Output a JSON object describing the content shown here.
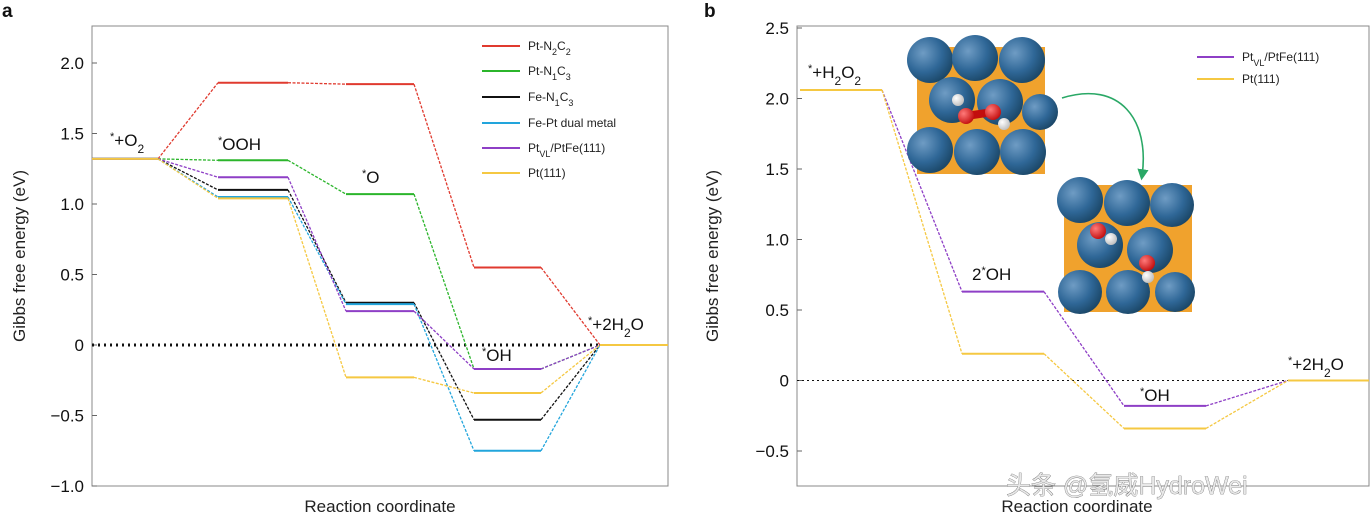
{
  "watermark": "头条 @氢威HydroWei",
  "chart_data": [
    {
      "type": "line",
      "panel_label": "a",
      "title": "",
      "xlabel": "Reaction coordinate",
      "ylabel": "Gibbs free energy (eV)",
      "ylim": [
        -1.0,
        2.25
      ],
      "yticks": [
        "2.0",
        "1.5",
        "1.0",
        "0.5",
        "0",
        "−0.5",
        "−1.0"
      ],
      "ytick_values": [
        2.0,
        1.5,
        1.0,
        0.5,
        0,
        -0.5,
        -1.0
      ],
      "steps": [
        "*+O2",
        "*OOH",
        "*O",
        "*OH",
        "*+2H2O"
      ],
      "reference_line_y": 0,
      "legend": {
        "position": "top-right"
      },
      "series": [
        {
          "name": "Pt-N2C2",
          "legend_main": "Pt-N",
          "legend_sub1": "2",
          "legend_mid": "C",
          "legend_sub2": "2",
          "color": "#e03a2f",
          "values": [
            1.32,
            1.86,
            1.85,
            0.55,
            0.0
          ]
        },
        {
          "name": "Pt-N1C3",
          "legend_main": "Pt-N",
          "legend_sub1": "1",
          "legend_mid": "C",
          "legend_sub2": "3",
          "color": "#2bb52b",
          "values": [
            1.32,
            1.31,
            1.07,
            -0.17,
            0.0
          ]
        },
        {
          "name": "Fe-N1C3",
          "legend_main": "Fe-N",
          "legend_sub1": "1",
          "legend_mid": "C",
          "legend_sub2": "3",
          "color": "#111111",
          "values": [
            1.32,
            1.1,
            0.3,
            -0.53,
            0.0
          ]
        },
        {
          "name": "Fe-Pt dual metal",
          "legend_main": "Fe-Pt dual metal",
          "color": "#22a5dc",
          "values": [
            1.32,
            1.05,
            0.29,
            -0.75,
            0.0
          ]
        },
        {
          "name": "PtVL/PtFe(111)",
          "legend_main": "Pt",
          "legend_sub1": "VL",
          "legend_mid": "/PtFe(111)",
          "color": "#8e3fc6",
          "values": [
            1.32,
            1.19,
            0.24,
            -0.17,
            0.0
          ]
        },
        {
          "name": "Pt(111)",
          "legend_main": "Pt(111)",
          "color": "#f5c842",
          "values": [
            1.32,
            1.04,
            -0.23,
            -0.34,
            0.0
          ]
        }
      ],
      "annotations": {
        "step1": {
          "sup": "*",
          "pre": "+O",
          "sub": "2",
          "post": ""
        },
        "step2": {
          "sup": "*",
          "pre": "OOH"
        },
        "step3": {
          "sup": "*",
          "pre": "O"
        },
        "step4": {
          "sup": "*",
          "pre": "OH"
        },
        "step5": {
          "sup": "*",
          "pre": "+2H",
          "sub": "2",
          "post": "O"
        }
      }
    },
    {
      "type": "line",
      "panel_label": "b",
      "title": "",
      "xlabel": "Reaction coordinate",
      "ylabel": "Gibbs free energy (eV)",
      "ylim": [
        -0.6,
        2.5
      ],
      "yticks": [
        "2.5",
        "2.0",
        "1.5",
        "1.0",
        "0.5",
        "0",
        "−0.5"
      ],
      "ytick_values": [
        2.5,
        2.0,
        1.5,
        1.0,
        0.5,
        0,
        -0.5
      ],
      "steps": [
        "*+H2O2",
        "2*OH",
        "*OH",
        "*+2H2O"
      ],
      "reference_line_y": 0,
      "legend": {
        "position": "top-right"
      },
      "series": [
        {
          "name": "PtVL/PtFe(111)",
          "legend_main": "Pt",
          "legend_sub1": "VL",
          "legend_mid": "/PtFe(111)",
          "color": "#8e3fc6",
          "values": [
            2.06,
            0.63,
            -0.18,
            0.0
          ]
        },
        {
          "name": "Pt(111)",
          "legend_main": "Pt(111)",
          "color": "#f5c842",
          "values": [
            2.06,
            0.19,
            -0.34,
            0.0
          ]
        }
      ],
      "annotations": {
        "step1": {
          "sup": "*",
          "pre": "+H",
          "sub": "2",
          "post": "O",
          "sub2": "2"
        },
        "step2": {
          "pre": "2",
          "sup": "*",
          "post": "OH"
        },
        "step3": {
          "sup": "*",
          "pre": "OH"
        },
        "step4": {
          "sup": "*",
          "pre": "+2H",
          "sub": "2",
          "post": "O"
        }
      },
      "insets": [
        "H2O2 adsorbed structure",
        "2*OH dissociated structure"
      ]
    }
  ]
}
